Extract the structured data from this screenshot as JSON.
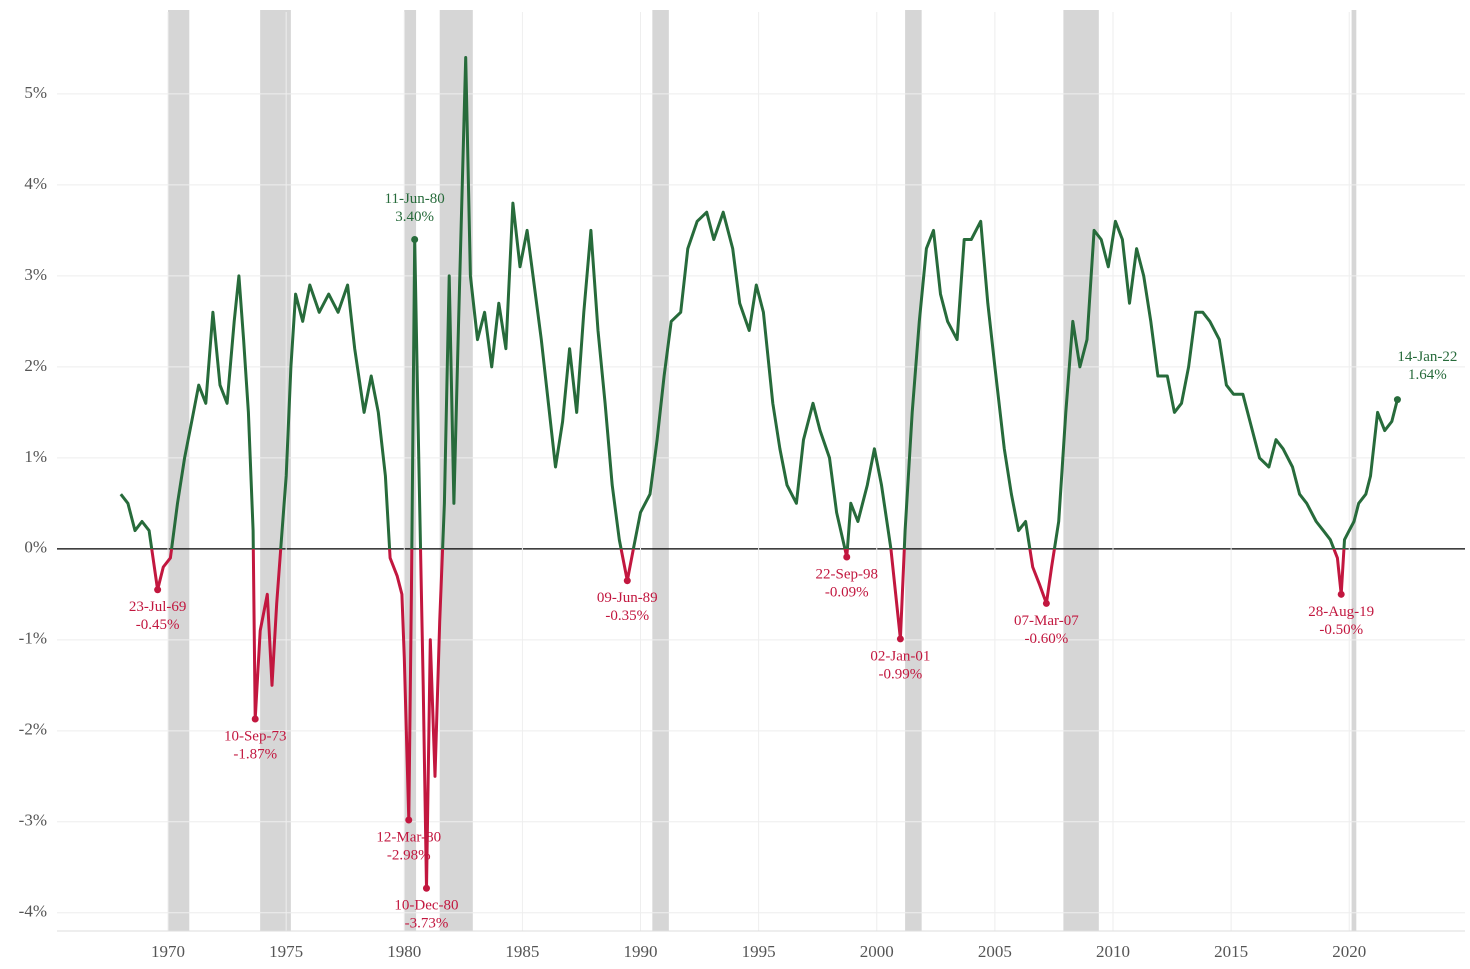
{
  "chart_data": {
    "type": "line",
    "color_positive": "#276b3b",
    "color_negative": "#c2173f",
    "recession_color": "#d6d6d6",
    "grid": true,
    "xlim": [
      1965.3,
      2024.9
    ],
    "xticks": [
      1970,
      1975,
      1980,
      1985,
      1990,
      1995,
      2000,
      2005,
      2010,
      2015,
      2020
    ],
    "ylim": [
      -4.2,
      5.9
    ],
    "yticks": [
      {
        "value": -4,
        "label": "-4%"
      },
      {
        "value": -3,
        "label": "-3%"
      },
      {
        "value": -2,
        "label": "-2%"
      },
      {
        "value": -1,
        "label": "-1%"
      },
      {
        "value": 0,
        "label": "0%"
      },
      {
        "value": 1,
        "label": "1%"
      },
      {
        "value": 2,
        "label": "2%"
      },
      {
        "value": 3,
        "label": "3%"
      },
      {
        "value": 4,
        "label": "4%"
      },
      {
        "value": 5,
        "label": "5%"
      }
    ],
    "recessions": [
      [
        1970.0,
        1970.9
      ],
      [
        1973.9,
        1975.2
      ],
      [
        1980.0,
        1980.5
      ],
      [
        1981.5,
        1982.9
      ],
      [
        1990.5,
        1991.2
      ],
      [
        2001.2,
        2001.9
      ],
      [
        2007.9,
        2009.4
      ],
      [
        2020.1,
        2020.3
      ]
    ],
    "x": [
      1968.0,
      1968.3,
      1968.6,
      1968.9,
      1969.2,
      1969.56,
      1969.8,
      1970.1,
      1970.4,
      1970.7,
      1971.0,
      1971.3,
      1971.6,
      1971.9,
      1972.2,
      1972.5,
      1972.8,
      1973.0,
      1973.2,
      1973.4,
      1973.6,
      1973.69,
      1973.9,
      1974.2,
      1974.4,
      1974.6,
      1974.8,
      1975.0,
      1975.2,
      1975.4,
      1975.7,
      1976.0,
      1976.4,
      1976.8,
      1977.2,
      1977.6,
      1977.9,
      1978.3,
      1978.6,
      1978.9,
      1979.2,
      1979.4,
      1979.7,
      1979.9,
      1980.0,
      1980.19,
      1980.3,
      1980.44,
      1980.6,
      1980.8,
      1980.94,
      1981.1,
      1981.3,
      1981.5,
      1981.7,
      1981.9,
      1982.1,
      1982.3,
      1982.6,
      1982.8,
      1983.1,
      1983.4,
      1983.7,
      1984.0,
      1984.3,
      1984.6,
      1984.9,
      1985.2,
      1985.5,
      1985.8,
      1986.1,
      1986.4,
      1986.7,
      1987.0,
      1987.3,
      1987.6,
      1987.9,
      1988.2,
      1988.5,
      1988.8,
      1989.1,
      1989.44,
      1989.7,
      1990.0,
      1990.4,
      1990.7,
      1991.0,
      1991.3,
      1991.7,
      1992.0,
      1992.4,
      1992.8,
      1993.1,
      1993.5,
      1993.9,
      1994.2,
      1994.6,
      1994.9,
      1995.2,
      1995.6,
      1995.9,
      1996.2,
      1996.6,
      1996.9,
      1997.3,
      1997.6,
      1998.0,
      1998.3,
      1998.73,
      1998.9,
      1999.2,
      1999.6,
      1999.9,
      2000.2,
      2000.6,
      2000.8,
      2001.0,
      2001.2,
      2001.5,
      2001.8,
      2002.1,
      2002.4,
      2002.7,
      2003.0,
      2003.4,
      2003.7,
      2004.0,
      2004.4,
      2004.7,
      2005.0,
      2005.4,
      2005.7,
      2006.0,
      2006.3,
      2006.6,
      2006.9,
      2007.18,
      2007.4,
      2007.7,
      2008.0,
      2008.3,
      2008.6,
      2008.9,
      2009.2,
      2009.5,
      2009.8,
      2010.1,
      2010.4,
      2010.7,
      2011.0,
      2011.3,
      2011.6,
      2011.9,
      2012.3,
      2012.6,
      2012.9,
      2013.2,
      2013.5,
      2013.8,
      2014.1,
      2014.5,
      2014.8,
      2015.1,
      2015.5,
      2015.8,
      2016.2,
      2016.6,
      2016.9,
      2017.2,
      2017.6,
      2017.9,
      2018.2,
      2018.6,
      2018.9,
      2019.2,
      2019.5,
      2019.66,
      2019.8,
      2020.0,
      2020.2,
      2020.4,
      2020.7,
      2020.9,
      2021.2,
      2021.5,
      2021.8,
      2022.04
    ],
    "values": [
      0.6,
      0.5,
      0.2,
      0.3,
      0.2,
      -0.45,
      -0.2,
      -0.1,
      0.5,
      1.0,
      1.4,
      1.8,
      1.6,
      2.6,
      1.8,
      1.6,
      2.5,
      3.0,
      2.3,
      1.5,
      0.2,
      -1.87,
      -0.9,
      -0.5,
      -1.5,
      -0.6,
      0.1,
      0.8,
      2.0,
      2.8,
      2.5,
      2.9,
      2.6,
      2.8,
      2.6,
      2.9,
      2.2,
      1.5,
      1.9,
      1.5,
      0.8,
      -0.1,
      -0.3,
      -0.5,
      -1.2,
      -2.98,
      -0.5,
      3.4,
      1.2,
      -1.5,
      -3.73,
      -1.0,
      -2.5,
      -0.8,
      0.5,
      3.0,
      0.5,
      2.5,
      5.4,
      3.0,
      2.3,
      2.6,
      2.0,
      2.7,
      2.2,
      3.8,
      3.1,
      3.5,
      2.9,
      2.3,
      1.6,
      0.9,
      1.4,
      2.2,
      1.5,
      2.6,
      3.5,
      2.4,
      1.6,
      0.7,
      0.1,
      -0.35,
      0.0,
      0.4,
      0.6,
      1.2,
      1.9,
      2.5,
      2.6,
      3.3,
      3.6,
      3.7,
      3.4,
      3.7,
      3.3,
      2.7,
      2.4,
      2.9,
      2.6,
      1.6,
      1.1,
      0.7,
      0.5,
      1.2,
      1.6,
      1.3,
      1.0,
      0.4,
      -0.09,
      0.5,
      0.3,
      0.7,
      1.1,
      0.7,
      0.0,
      -0.5,
      -0.99,
      0.2,
      1.5,
      2.5,
      3.3,
      3.5,
      2.8,
      2.5,
      2.3,
      3.4,
      3.4,
      3.6,
      2.7,
      2.0,
      1.1,
      0.6,
      0.2,
      0.3,
      -0.2,
      -0.4,
      -0.6,
      -0.2,
      0.3,
      1.5,
      2.5,
      2.0,
      2.3,
      3.5,
      3.4,
      3.1,
      3.6,
      3.4,
      2.7,
      3.3,
      3.0,
      2.5,
      1.9,
      1.9,
      1.5,
      1.6,
      2.0,
      2.6,
      2.6,
      2.5,
      2.3,
      1.8,
      1.7,
      1.7,
      1.4,
      1.0,
      0.9,
      1.2,
      1.1,
      0.9,
      0.6,
      0.5,
      0.3,
      0.2,
      0.1,
      -0.1,
      -0.5,
      0.1,
      0.2,
      0.3,
      0.5,
      0.6,
      0.8,
      1.5,
      1.3,
      1.4,
      1.64
    ],
    "annotations": [
      {
        "date": "23-Jul-69",
        "x": 1969.56,
        "value": -0.45,
        "value_label": "-0.45%"
      },
      {
        "date": "10-Sep-73",
        "x": 1973.69,
        "value": -1.87,
        "value_label": "-1.87%"
      },
      {
        "date": "12-Mar-80",
        "x": 1980.19,
        "value": -2.98,
        "value_label": "-2.98%"
      },
      {
        "date": "11-Jun-80",
        "x": 1980.44,
        "value": 3.4,
        "value_label": "3.40%"
      },
      {
        "date": "10-Dec-80",
        "x": 1980.94,
        "value": -3.73,
        "value_label": "-3.73%"
      },
      {
        "date": "09-Jun-89",
        "x": 1989.44,
        "value": -0.35,
        "value_label": "-0.35%"
      },
      {
        "date": "22-Sep-98",
        "x": 1998.73,
        "value": -0.09,
        "value_label": "-0.09%"
      },
      {
        "date": "02-Jan-01",
        "x": 2001.0,
        "value": -0.99,
        "value_label": "-0.99%"
      },
      {
        "date": "07-Mar-07",
        "x": 2007.18,
        "value": -0.6,
        "value_label": "-0.60%"
      },
      {
        "date": "28-Aug-19",
        "x": 2019.66,
        "value": -0.5,
        "value_label": "-0.50%"
      },
      {
        "date": "14-Jan-22",
        "x": 2022.04,
        "value": 1.64,
        "value_label": "1.64%"
      }
    ]
  }
}
